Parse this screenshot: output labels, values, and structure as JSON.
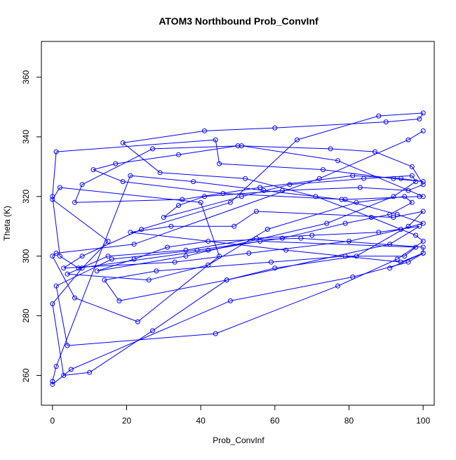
{
  "chart_data": {
    "type": "line",
    "title": "ATOM3 Northbound Prob_ConvInf",
    "xlabel": "Prob_ConvInf",
    "ylabel": "Theta (K)",
    "xlim": [
      -3,
      103
    ],
    "ylim": [
      250,
      372
    ],
    "xticks": [
      0,
      20,
      40,
      60,
      80,
      100
    ],
    "yticks": [
      260,
      280,
      300,
      320,
      340,
      360
    ],
    "grid": false,
    "legend": "none",
    "series_color": "#0000ff",
    "x": [
      100,
      96,
      72,
      22,
      1,
      0,
      6,
      23,
      45,
      40,
      2,
      0,
      15,
      8,
      0,
      3,
      10,
      27,
      47,
      60,
      82,
      96,
      100,
      92,
      55,
      49,
      32,
      21,
      63,
      94,
      100,
      100,
      67,
      42,
      31,
      22,
      12,
      36,
      74,
      92,
      98,
      97,
      84,
      64,
      51,
      30,
      34,
      41,
      62,
      83,
      96,
      100,
      97,
      87,
      75,
      50,
      34,
      17,
      11,
      19,
      46,
      79,
      99,
      100,
      77,
      51,
      27,
      8,
      6,
      35,
      56,
      81,
      94,
      100,
      92,
      73,
      45,
      44,
      1,
      0,
      2,
      7,
      42,
      56,
      98,
      95,
      79,
      59,
      28,
      14,
      18,
      47,
      91,
      99,
      88,
      70,
      55,
      36,
      15,
      4,
      26,
      42,
      58,
      82,
      95,
      97,
      91,
      79,
      62,
      39,
      16,
      1,
      4,
      44,
      77,
      93,
      100,
      98,
      86,
      71,
      52,
      29,
      19,
      41,
      60,
      90,
      99,
      100,
      88,
      66,
      48,
      24,
      8,
      3,
      33,
      53,
      80,
      94,
      100,
      93,
      78,
      57,
      38,
      21,
      1,
      0,
      0,
      5,
      48,
      81,
      96,
      100,
      91
    ],
    "y": [
      342,
      339,
      326,
      304,
      301,
      300,
      286,
      278,
      300,
      318,
      323,
      319,
      305,
      296,
      284,
      260,
      261,
      275,
      292,
      296,
      300,
      310,
      315,
      313,
      315,
      310,
      310,
      308,
      302,
      298,
      301,
      303,
      306,
      305,
      303,
      299,
      295,
      300,
      311,
      320,
      325,
      327,
      326,
      324,
      320,
      313,
      317,
      320,
      322,
      323,
      322,
      324,
      330,
      335,
      336,
      337,
      334,
      331,
      329,
      325,
      321,
      319,
      320,
      320,
      332,
      337,
      336,
      324,
      318,
      319,
      323,
      327,
      326,
      325,
      326,
      329,
      331,
      339,
      335,
      320,
      300,
      296,
      302,
      305,
      303,
      300,
      300,
      298,
      295,
      292,
      285,
      292,
      304,
      310,
      308,
      307,
      306,
      302,
      300,
      294,
      292,
      297,
      309,
      318,
      320,
      318,
      314,
      311,
      306,
      302,
      299,
      290,
      270,
      274,
      290,
      299,
      305,
      307,
      313,
      320,
      326,
      328,
      338,
      342,
      343,
      345,
      346,
      348,
      347,
      339,
      318,
      309,
      300,
      296,
      298,
      301,
      305,
      309,
      311,
      314,
      319,
      322,
      325,
      327,
      263,
      258,
      257,
      262,
      285,
      293,
      298,
      301,
      296
    ]
  }
}
